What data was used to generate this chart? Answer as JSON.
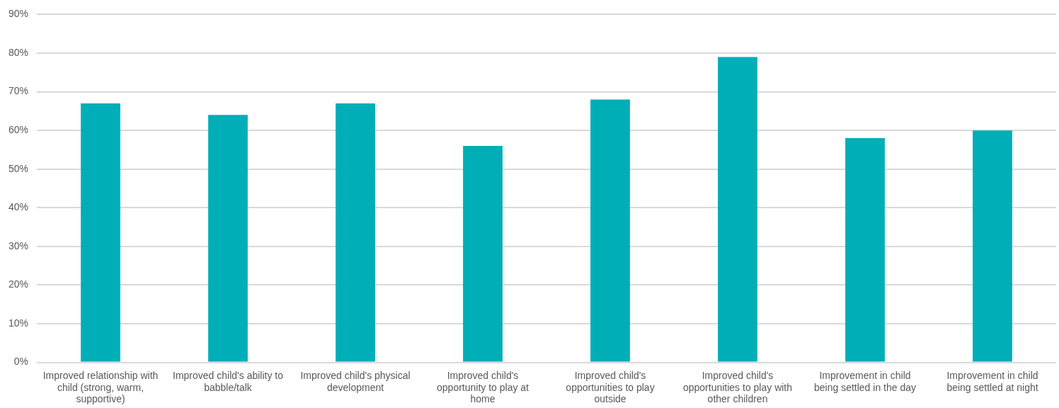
{
  "chart_data": {
    "type": "bar",
    "categories": [
      "Improved relationship with child (strong, warm, supportive)",
      "Improved child's ability to babble/talk",
      "Improved child's physical development",
      "Improved child's opportunity to play at home",
      "Improved child's opportunities to play outside",
      "Improved child's opportunities to play with other children",
      "Improvement in child being settled in the day",
      "Improvement in child being settled at night"
    ],
    "values": [
      67,
      64,
      67,
      56,
      68,
      79,
      58,
      60
    ],
    "color": "#00aeb8",
    "ylim": [
      0,
      90
    ],
    "yticks": [
      {
        "value": 0,
        "label": "0%"
      },
      {
        "value": 10,
        "label": "10%"
      },
      {
        "value": 20,
        "label": "20%"
      },
      {
        "value": 30,
        "label": "30%"
      },
      {
        "value": 40,
        "label": "40%"
      },
      {
        "value": 50,
        "label": "50%"
      },
      {
        "value": 60,
        "label": "60%"
      },
      {
        "value": 70,
        "label": "70%"
      },
      {
        "value": 80,
        "label": "80%"
      },
      {
        "value": 90,
        "label": "90%"
      }
    ],
    "grid": "y",
    "legend": false
  }
}
